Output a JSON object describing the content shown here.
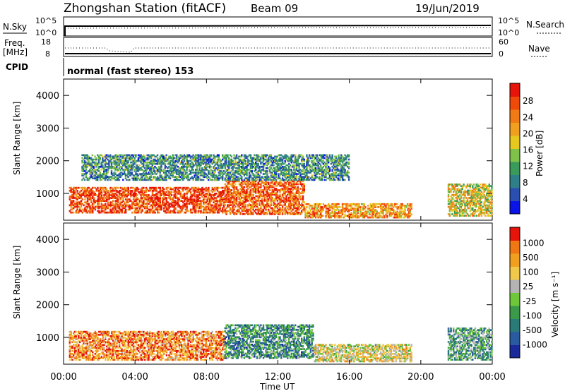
{
  "header": {
    "station": "Zhongshan Station (fitACF)",
    "beam": "Beam 09",
    "date": "19/Jun/2019"
  },
  "status_panel": {
    "nsky_label": "N.Sky",
    "nsearch_label": "N.Search",
    "nsky_ticks": [
      "10^5",
      "10^0"
    ],
    "nsearch_ticks": [
      "10^5",
      "10^0"
    ],
    "freq_label_1": "Freq.",
    "freq_label_2": "[MHz]",
    "freq_ticks": [
      "18",
      "8"
    ],
    "nave_label": "Nave",
    "nave_ticks": [
      "60",
      "0"
    ],
    "cpid_label": "CPID",
    "cpid_text": "normal (fast stereo) 153"
  },
  "chart_data": [
    {
      "type": "heatmap",
      "name": "power",
      "ylabel": "Slant Range [km]",
      "xlabel": "Time UT",
      "ylim": [
        180,
        4500
      ],
      "xlim": [
        0,
        24
      ],
      "yticks": [
        "1000",
        "2000",
        "3000",
        "4000"
      ],
      "xticks": [
        "00:00",
        "04:00",
        "08:00",
        "12:00",
        "16:00",
        "20:00",
        "00:00"
      ],
      "colorbar": {
        "label": "Power [dB]",
        "ticks": [
          "4",
          "8",
          "12",
          "16",
          "20",
          "24",
          "28"
        ],
        "colors": [
          "#0a14e6",
          "#2a4fb0",
          "#2f7f8a",
          "#3a9a5a",
          "#7ec24a",
          "#e6c81e",
          "#f0a01e",
          "#f07a14",
          "#f04a0a",
          "#e6140a"
        ]
      },
      "regions": [
        {
          "t0": 0.3,
          "t1": 9.0,
          "r0": 400,
          "r1": 1200,
          "level": 0.85
        },
        {
          "t0": 9.0,
          "t1": 13.5,
          "r0": 350,
          "r1": 1400,
          "level": 0.8
        },
        {
          "t0": 13.5,
          "t1": 19.5,
          "r0": 250,
          "r1": 700,
          "level": 0.7
        },
        {
          "t0": 1.0,
          "t1": 16.0,
          "r0": 1400,
          "r1": 2200,
          "level": 0.3
        },
        {
          "t0": 21.5,
          "t1": 24.0,
          "r0": 300,
          "r1": 1300,
          "level": 0.55
        }
      ]
    },
    {
      "type": "heatmap",
      "name": "velocity",
      "ylabel": "Slant Range [km]",
      "xlabel": "Time UT",
      "ylim": [
        180,
        4500
      ],
      "xlim": [
        0,
        24
      ],
      "yticks": [
        "1000",
        "2000",
        "3000",
        "4000"
      ],
      "xticks": [
        "00:00",
        "04:00",
        "08:00",
        "12:00",
        "16:00",
        "20:00",
        "00:00"
      ],
      "colorbar": {
        "label": "Velocity [m s⁻¹]",
        "ticks": [
          "1000",
          "500",
          "100",
          "25",
          "-25",
          "-100",
          "-500",
          "-1000"
        ],
        "colors": [
          "#1a2a9a",
          "#2a5aa0",
          "#2a7a7a",
          "#3a9a4a",
          "#6ec83a",
          "#b4b4b4",
          "#f0c84a",
          "#f0a01e",
          "#f07814",
          "#e6140a"
        ]
      },
      "regions": [
        {
          "t0": 0.3,
          "t1": 9.0,
          "r0": 300,
          "r1": 1200,
          "level": 0.8
        },
        {
          "t0": 9.0,
          "t1": 14.0,
          "r0": 350,
          "r1": 1400,
          "level": 0.3
        },
        {
          "t0": 14.0,
          "t1": 19.5,
          "r0": 250,
          "r1": 800,
          "level": 0.6
        },
        {
          "t0": 21.5,
          "t1": 24.0,
          "r0": 300,
          "r1": 1300,
          "level": 0.35
        }
      ]
    }
  ]
}
